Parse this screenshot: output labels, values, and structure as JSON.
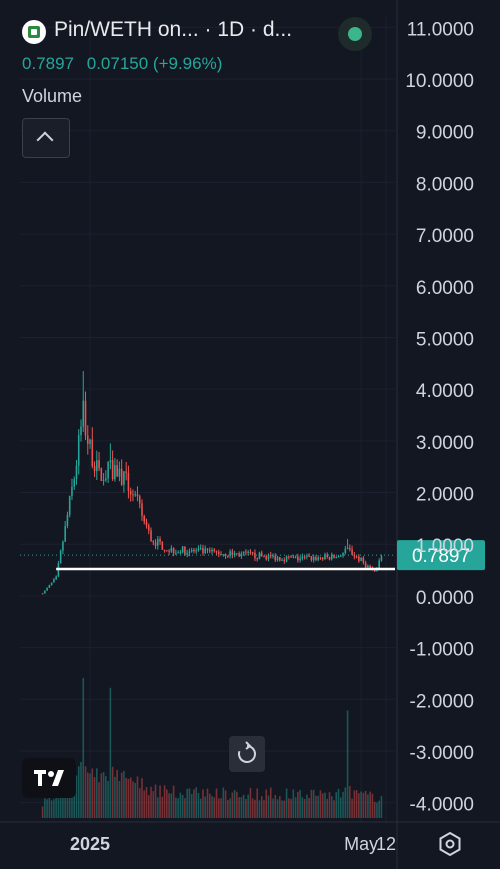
{
  "header": {
    "title": "Pin/WETH on... · 1D · d...",
    "last_price": "0.7897",
    "change": "0.07150 (+9.96%)"
  },
  "volume_label": "Volume",
  "colors": {
    "background": "#131722",
    "up": "#26a69a",
    "down": "#ef5350",
    "price_label_bg": "#26a69a",
    "support_line": "#ffffff",
    "axis_text": "#d1d4dc"
  },
  "icons": {
    "symbol": "pair-logo-icon",
    "live": "live-status-icon",
    "collapse": "chevron-up-icon",
    "reset": "reset-view-icon",
    "logo": "tradingview-logo-icon",
    "settings": "settings-icon"
  },
  "chart_data": {
    "type": "candlestick",
    "interval": "1D",
    "y_axis": {
      "ticks": [
        "11.0000",
        "10.0000",
        "9.0000",
        "8.0000",
        "7.0000",
        "6.0000",
        "5.0000",
        "4.0000",
        "3.0000",
        "2.0000",
        "1.0000",
        "0.0000",
        "-1.0000",
        "-2.0000",
        "-3.0000",
        "-4.0000"
      ],
      "range": [
        -4.2,
        11.2
      ],
      "position": "right"
    },
    "x_axis": {
      "labels": [
        {
          "text": "2025",
          "date": "2025-01-01",
          "bold": true
        },
        {
          "text": "May",
          "date": "2025-05-01",
          "bold": false
        },
        {
          "text": "12",
          "date": "2025-05-12",
          "bold": false
        }
      ],
      "range": [
        "2024-12-01",
        "2025-05-16"
      ]
    },
    "last_price": {
      "value": 0.7897,
      "label": "0.7897"
    },
    "support_line": {
      "value": 0.52,
      "from": "2024-12-17",
      "to": "2025-05-12"
    },
    "series_keyframes": [
      {
        "date": "2024-12-11",
        "close": 0.05
      },
      {
        "date": "2024-12-17",
        "close": 0.35
      },
      {
        "date": "2024-12-21",
        "close": 1.3
      },
      {
        "date": "2024-12-25",
        "close": 2.3
      },
      {
        "date": "2024-12-29",
        "close": 3.5
      },
      {
        "date": "2024-12-31",
        "close": 3.0
      },
      {
        "date": "2025-01-05",
        "close": 2.3
      },
      {
        "date": "2025-01-12",
        "close": 2.5
      },
      {
        "date": "2025-01-20",
        "close": 2.0
      },
      {
        "date": "2025-01-28",
        "close": 1.1
      },
      {
        "date": "2025-02-05",
        "close": 0.9
      },
      {
        "date": "2025-02-20",
        "close": 0.85
      },
      {
        "date": "2025-03-10",
        "close": 0.8
      },
      {
        "date": "2025-04-01",
        "close": 0.72
      },
      {
        "date": "2025-04-20",
        "close": 0.75
      },
      {
        "date": "2025-04-25",
        "close": 0.9
      },
      {
        "date": "2025-05-01",
        "close": 0.68
      },
      {
        "date": "2025-05-07",
        "close": 0.45
      },
      {
        "date": "2025-05-10",
        "close": 0.79
      }
    ],
    "notable_highs": [
      {
        "date": "2024-12-29",
        "high": 4.35
      },
      {
        "date": "2025-01-10",
        "high": 2.95
      },
      {
        "date": "2025-04-25",
        "high": 1.1
      }
    ]
  }
}
